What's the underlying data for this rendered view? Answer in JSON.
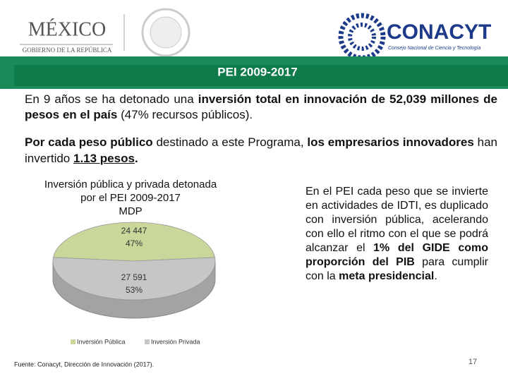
{
  "header": {
    "logo_left": "MÉXICO",
    "logo_left_sub": "GOBIERNO DE LA REPÚBLICA",
    "logo_right": "CONACYT",
    "logo_right_sub": "Consejo Nacional de Ciencia y Tecnología",
    "banner": "PEI 2009-2017"
  },
  "paragraphs": [
    [
      {
        "text": "En 9 años se ha detonado una ",
        "bold": false
      },
      {
        "text": "inversión total en innovación de 52,039 millones de pesos en el país",
        "bold": true
      },
      {
        "text": " (47% recursos públicos).",
        "bold": false
      }
    ],
    [
      {
        "text": "Por cada peso público",
        "bold": true
      },
      {
        "text": " destinado a este Programa, ",
        "bold": false
      },
      {
        "text": "los empresarios innovadores",
        "bold": true
      },
      {
        "text": " han invertido ",
        "bold": false
      },
      {
        "text": "1.13 pesos",
        "bold": true,
        "underline": true
      },
      {
        "text": ".",
        "bold": true
      }
    ]
  ],
  "side_text": [
    {
      "text": "En el PEI cada peso que se invierte en actividades de IDTI, es duplicado con inversión pública, acelerando con ello el ritmo con el que se podrá alcanzar el ",
      "bold": false
    },
    {
      "text": "1% del GIDE como proporción del PIB",
      "bold": true
    },
    {
      "text": " para cumplir con la ",
      "bold": false
    },
    {
      "text": "meta presidencial",
      "bold": true
    },
    {
      "text": ".",
      "bold": false
    }
  ],
  "chart_data": {
    "type": "pie",
    "title": [
      "Inversión pública y privada detonada",
      "por el PEI 2009-2017",
      "MDP"
    ],
    "categories": [
      "Inversión Pública",
      "Inversión Privada"
    ],
    "values": [
      24447,
      27591
    ],
    "value_labels": [
      "24 447",
      "27 591"
    ],
    "percents": [
      47,
      53
    ],
    "percent_labels": [
      "47%",
      "53%"
    ],
    "colors": [
      "#c9d79b",
      "#c6c6c6"
    ],
    "legend": "bottom"
  },
  "footer": {
    "source": "Fuente: Conacyt, Dirección de Innovación (2017).",
    "page": "17"
  }
}
